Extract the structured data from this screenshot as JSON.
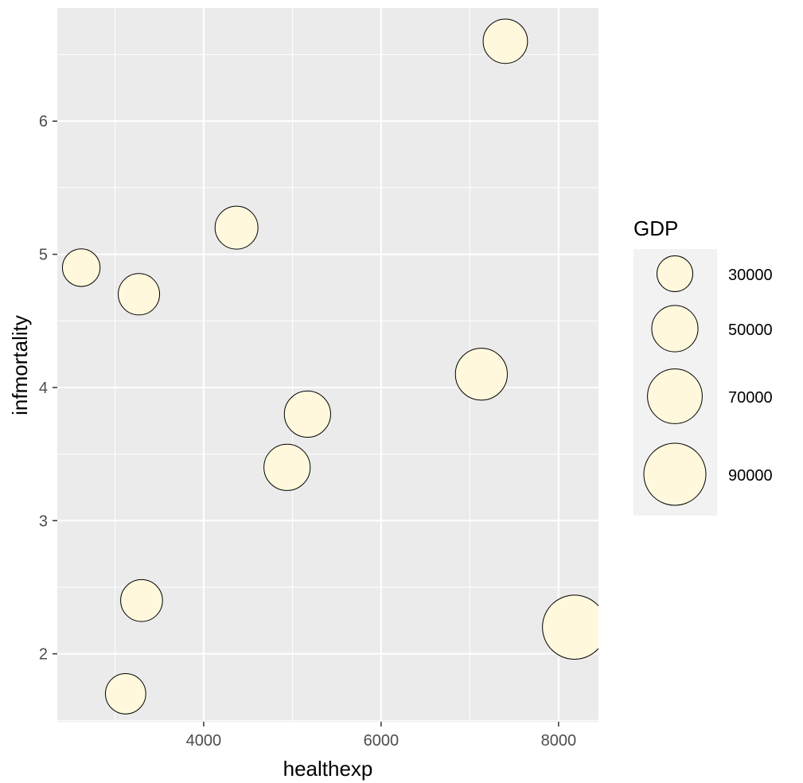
{
  "chart_data": {
    "type": "scatter",
    "title": "",
    "xlabel": "healthexp",
    "ylabel": "infmortality",
    "xlim": [
      2350,
      8450
    ],
    "ylim": [
      1.49,
      6.85
    ],
    "x_ticks": [
      4000,
      6000,
      8000
    ],
    "y_ticks": [
      2,
      3,
      4,
      5,
      6
    ],
    "x_tick_labels": [
      "4000",
      "6000",
      "8000"
    ],
    "y_tick_labels": [
      "2",
      "3",
      "4",
      "5",
      "6"
    ],
    "grid": true,
    "size_variable": "GDP",
    "points": [
      {
        "healthexp": 2620,
        "infmortality": 4.9,
        "GDP": 33000
      },
      {
        "healthexp": 3270,
        "infmortality": 4.7,
        "GDP": 40000
      },
      {
        "healthexp": 4370,
        "infmortality": 5.2,
        "GDP": 43000
      },
      {
        "healthexp": 7400,
        "infmortality": 6.6,
        "GDP": 46000
      },
      {
        "healthexp": 5170,
        "infmortality": 3.8,
        "GDP": 50000
      },
      {
        "healthexp": 4940,
        "infmortality": 3.4,
        "GDP": 50000
      },
      {
        "healthexp": 7130,
        "infmortality": 4.1,
        "GDP": 63000
      },
      {
        "healthexp": 3300,
        "infmortality": 2.4,
        "GDP": 41000
      },
      {
        "healthexp": 3120,
        "infmortality": 1.7,
        "GDP": 38000
      },
      {
        "healthexp": 8180,
        "infmortality": 2.2,
        "GDP": 96000
      }
    ],
    "legend": {
      "title": "GDP",
      "position": "right",
      "entries": [
        {
          "value": 30000,
          "label": "30000"
        },
        {
          "value": 50000,
          "label": "50000"
        },
        {
          "value": 70000,
          "label": "70000"
        },
        {
          "value": 90000,
          "label": "90000"
        }
      ]
    },
    "colors": {
      "panel_background": "#ebebeb",
      "grid": "#ffffff",
      "point_fill": "#fff8dc",
      "point_stroke": "#000000",
      "legend_key_background": "#f2f2f2"
    }
  }
}
